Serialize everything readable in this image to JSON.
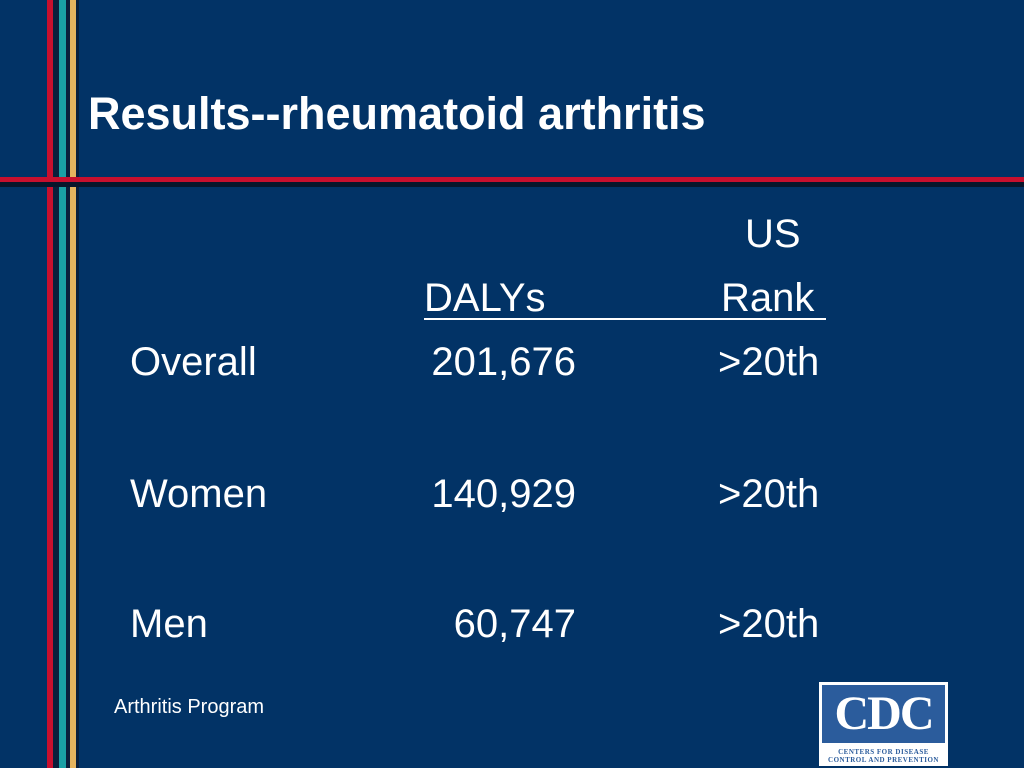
{
  "slide": {
    "title": "Results--rheumatoid arthritis",
    "footer": "Arthritis Program"
  },
  "table": {
    "headers": {
      "dalys": "DALYs",
      "us_rank_line1": "US",
      "us_rank_line2": "Rank"
    },
    "rows": [
      {
        "label": "Overall",
        "dalys": "201,676",
        "rank": ">20th"
      },
      {
        "label": "Women",
        "dalys": "140,929",
        "rank": ">20th"
      },
      {
        "label": "Men",
        "dalys": "60,747",
        "rank": ">20th"
      }
    ]
  },
  "logo": {
    "name": "CDC",
    "subtitle_line1": "CENTERS FOR DISEASE",
    "subtitle_line2": "CONTROL AND PREVENTION"
  },
  "colors": {
    "background": "#023366",
    "accent_red": "#c8102e",
    "accent_teal": "#1aa0a5",
    "accent_gold": "#e6b45e",
    "logo_blue": "#2b5c9c"
  }
}
